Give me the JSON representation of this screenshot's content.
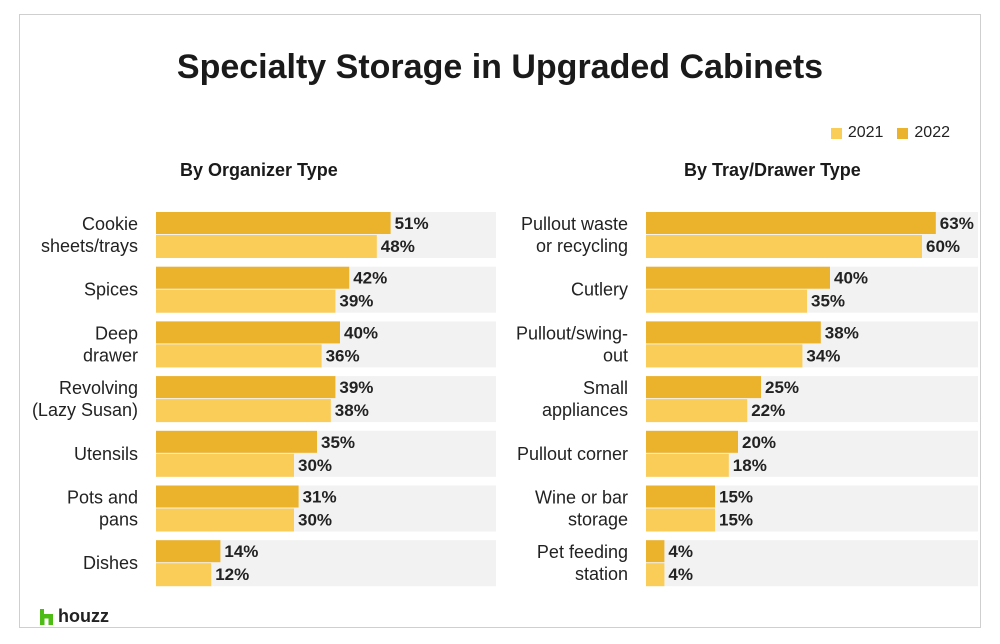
{
  "title": "Specialty Storage in Upgraded Cabinets",
  "legend": [
    {
      "label": "2021",
      "color": "#FACC58"
    },
    {
      "label": "2022",
      "color": "#EBB22C"
    }
  ],
  "brand": "houzz",
  "colors": {
    "bar2021": "#FACC58",
    "bar2022": "#EBB22C",
    "track": "#F2F2F2",
    "brand_green": "#4DBC15"
  },
  "chart_data": [
    {
      "type": "bar",
      "orientation": "horizontal",
      "title": "By Organizer Type",
      "xlim": [
        0,
        100
      ],
      "categories": [
        [
          "Cookie",
          "sheets/trays"
        ],
        [
          "Spices"
        ],
        [
          "Deep",
          "drawer"
        ],
        [
          "Revolving",
          "(Lazy Susan)"
        ],
        [
          "Utensils"
        ],
        [
          "Pots and",
          "pans"
        ],
        [
          "Dishes"
        ]
      ],
      "series": [
        {
          "name": "2022",
          "values": [
            51,
            42,
            40,
            39,
            35,
            31,
            14
          ]
        },
        {
          "name": "2021",
          "values": [
            48,
            39,
            36,
            38,
            30,
            30,
            12
          ]
        }
      ]
    },
    {
      "type": "bar",
      "orientation": "horizontal",
      "title": "By Tray/Drawer Type",
      "xlim": [
        0,
        100
      ],
      "categories": [
        [
          "Pullout waste",
          "or recycling"
        ],
        [
          "Cutlery"
        ],
        [
          "Pullout/swing-",
          "out"
        ],
        [
          "Small",
          "appliances"
        ],
        [
          "Pullout corner"
        ],
        [
          "Wine or bar",
          "storage"
        ],
        [
          "Pet feeding",
          "station"
        ]
      ],
      "series": [
        {
          "name": "2022",
          "values": [
            63,
            40,
            38,
            25,
            20,
            15,
            4
          ]
        },
        {
          "name": "2021",
          "values": [
            60,
            35,
            34,
            22,
            18,
            15,
            4
          ]
        }
      ]
    }
  ]
}
